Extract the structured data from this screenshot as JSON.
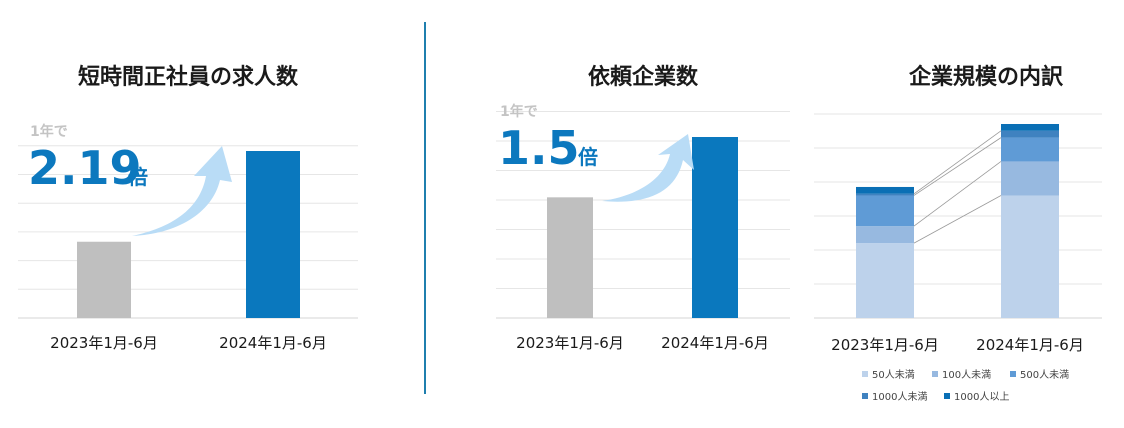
{
  "chart_data": [
    {
      "type": "bar",
      "title": "短時間正社員の求人数",
      "categories": [
        "2023年1月-6月",
        "2024年1月-6月"
      ],
      "values": [
        1,
        2.19
      ],
      "colors": [
        "#bfbfbf",
        "#0a78be"
      ],
      "growth": {
        "prefix": "1年で",
        "value": "2.19",
        "unit": "倍"
      }
    },
    {
      "type": "bar",
      "title": "依頼企業数",
      "categories": [
        "2023年1月-6月",
        "2024年1月-6月"
      ],
      "values": [
        1,
        1.5
      ],
      "colors": [
        "#bfbfbf",
        "#0a78be"
      ],
      "growth": {
        "prefix": "1年で",
        "value": "1.5",
        "unit": "倍"
      }
    },
    {
      "type": "bar",
      "stacked": true,
      "title": "企業規模の内訳",
      "categories": [
        "2023年1月-6月",
        "2024年1月-6月"
      ],
      "series": [
        {
          "name": "50人未満",
          "color": "#bdd2eb",
          "values": [
            22,
            36
          ]
        },
        {
          "name": "100人未満",
          "color": "#97b9e0",
          "values": [
            5,
            10
          ]
        },
        {
          "name": "500人未満",
          "color": "#5f9bd6",
          "values": [
            9,
            7
          ]
        },
        {
          "name": "1000人未満",
          "color": "#3f82c0",
          "values": [
            0.5,
            2
          ]
        },
        {
          "name": "1000人以上",
          "color": "#0a6fb5",
          "values": [
            2,
            2
          ]
        }
      ]
    }
  ]
}
